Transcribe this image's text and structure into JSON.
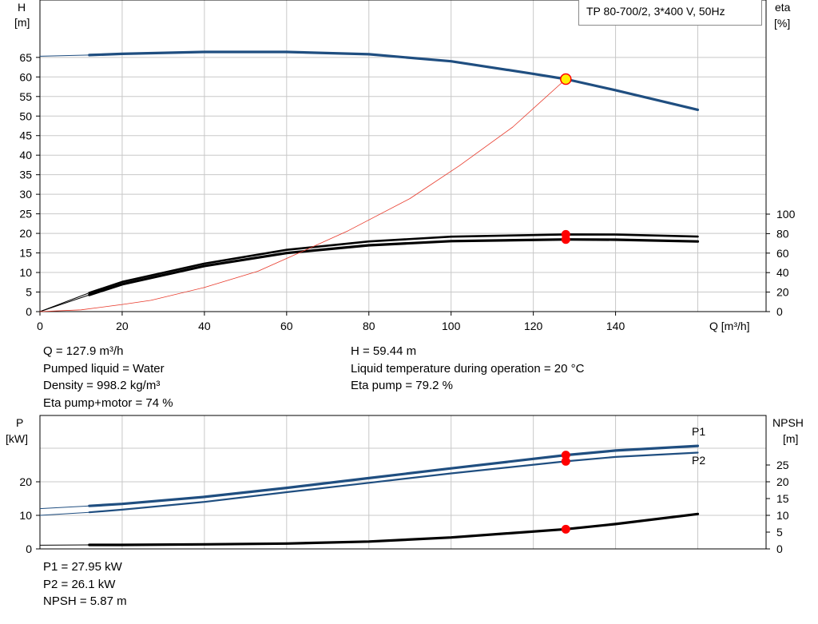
{
  "model_label": "TP 80-700/2, 3*400 V, 50Hz",
  "colors": {
    "head": "#1f4e80",
    "eff": "#e8392a",
    "black": "#000000",
    "grid": "#c8c8c8",
    "point_red": "#ff0000",
    "point_yellow": "#ffee00"
  },
  "chart_data": [
    {
      "type": "line",
      "name": "qh",
      "y_label": [
        "H",
        "[m]"
      ],
      "y2_label": [
        "eta",
        "[%]"
      ],
      "x_label": "Q [m³/h]",
      "xlim": [
        0,
        160
      ],
      "ylim": [
        0,
        70
      ],
      "y2lim": [
        0,
        250
      ],
      "x_ticks": [
        0,
        20,
        40,
        60,
        80,
        100,
        120,
        140
      ],
      "y_ticks": [
        0,
        5,
        10,
        15,
        20,
        25,
        30,
        35,
        40,
        45,
        50,
        55,
        60,
        65
      ],
      "y2_ticks": [
        0,
        20,
        40,
        60,
        80,
        100
      ],
      "grid": true,
      "series": [
        {
          "role": "head",
          "color": "#1f4e80",
          "width": 3.2,
          "extension": [
            [
              0,
              65.3
            ],
            [
              12,
              65.6
            ]
          ],
          "x": [
            12,
            20,
            40,
            60,
            80,
            100,
            120,
            127.9,
            140,
            160
          ],
          "y": [
            65.6,
            65.9,
            66.4,
            66.4,
            65.8,
            64.0,
            60.8,
            59.44,
            56.6,
            51.6
          ]
        },
        {
          "role": "eta_pump",
          "color": "#000000",
          "width": 2.6,
          "extension": [
            [
              0,
              0
            ],
            [
              12,
              19.3
            ]
          ],
          "x": [
            12,
            20,
            40,
            60,
            80,
            100,
            127.9,
            140,
            160
          ],
          "y": [
            19.3,
            30.5,
            49.3,
            63.4,
            72.0,
            76.9,
            79.2,
            79.0,
            77.0
          ]
        },
        {
          "role": "eta_pump_motor",
          "color": "#000000",
          "width": 3.2,
          "extension": [
            [
              0,
              0
            ],
            [
              12,
              17.1
            ]
          ],
          "x": [
            12,
            20,
            40,
            60,
            80,
            100,
            127.9,
            140,
            160
          ],
          "y": [
            17.1,
            28.0,
            46.8,
            60.1,
            68.0,
            72.3,
            74.0,
            73.8,
            72.0
          ]
        },
        {
          "role": "system_curve",
          "color": "#e8392a",
          "width": 0.8,
          "x": [
            0,
            10,
            20,
            27,
            40,
            53,
            62,
            75,
            90,
            102,
            115,
            127.9
          ],
          "y": [
            0,
            0.45,
            1.82,
            2.88,
            6.16,
            10.31,
            14.52,
            20.7,
            28.9,
            37.3,
            47.2,
            59.44
          ]
        }
      ],
      "operating_points": [
        {
          "x": 127.9,
          "y": 59.44,
          "axis": "y",
          "fill": "#ffee00",
          "stroke": "#ff0000"
        },
        {
          "x": 127.9,
          "y": 79.2,
          "axis": "y2",
          "fill": "#ff0000",
          "stroke": "#ff0000"
        },
        {
          "x": 127.9,
          "y": 74.0,
          "axis": "y2",
          "fill": "#ff0000",
          "stroke": "#ff0000"
        }
      ]
    },
    {
      "type": "line",
      "name": "power",
      "y_label": [
        "P",
        "[kW]"
      ],
      "y2_label": [
        "NPSH",
        "[m]"
      ],
      "xlim": [
        0,
        160
      ],
      "ylim": [
        0,
        40
      ],
      "y2lim": [
        0,
        40
      ],
      "y_ticks": [
        0,
        10,
        20
      ],
      "y2_ticks": [
        0,
        5,
        10,
        15,
        20,
        25
      ],
      "grid": true,
      "series": [
        {
          "role": "P1",
          "label": "P1",
          "color": "#1f4e80",
          "width": 3.2,
          "axis": "y",
          "extension": [
            [
              0,
              12.0
            ],
            [
              12,
              12.8
            ]
          ],
          "x": [
            12,
            20,
            40,
            60,
            80,
            100,
            127.9,
            140,
            160
          ],
          "y": [
            12.8,
            13.4,
            15.5,
            18.2,
            21.1,
            24.0,
            27.95,
            29.3,
            30.7
          ]
        },
        {
          "role": "P2",
          "label": "P2",
          "color": "#1f4e80",
          "width": 2.2,
          "axis": "y",
          "extension": [
            [
              0,
              10.0
            ],
            [
              12,
              10.9
            ]
          ],
          "x": [
            12,
            20,
            40,
            60,
            80,
            100,
            127.9,
            140,
            160
          ],
          "y": [
            10.9,
            11.7,
            14.0,
            16.9,
            19.7,
            22.5,
            26.1,
            27.4,
            28.7
          ]
        },
        {
          "role": "NPSH",
          "color": "#000000",
          "width": 3.2,
          "axis": "y2",
          "extension": [
            [
              0,
              1.1
            ],
            [
              12,
              1.2
            ]
          ],
          "x": [
            12,
            20,
            40,
            60,
            80,
            100,
            127.9,
            140,
            160
          ],
          "y": [
            1.2,
            1.2,
            1.35,
            1.6,
            2.2,
            3.4,
            5.87,
            7.4,
            10.4
          ]
        }
      ],
      "operating_points": [
        {
          "x": 127.9,
          "y": 27.95,
          "axis": "y",
          "fill": "#ff0000",
          "stroke": "#ff0000"
        },
        {
          "x": 127.9,
          "y": 26.1,
          "axis": "y",
          "fill": "#ff0000",
          "stroke": "#ff0000"
        },
        {
          "x": 127.9,
          "y": 5.87,
          "axis": "y2",
          "fill": "#ff0000",
          "stroke": "#ff0000"
        }
      ]
    }
  ],
  "info_left": [
    "Q = 127.9 m³/h",
    "Pumped liquid = Water",
    "Density = 998.2 kg/m³",
    "Eta pump+motor = 74 %"
  ],
  "info_right": [
    "H = 59.44 m",
    "Liquid temperature during operation = 20 °C",
    "Eta pump = 79.2 %"
  ],
  "info_bottom": [
    "P1 = 27.95 kW",
    "P2 = 26.1 kW",
    "NPSH = 5.87 m"
  ]
}
